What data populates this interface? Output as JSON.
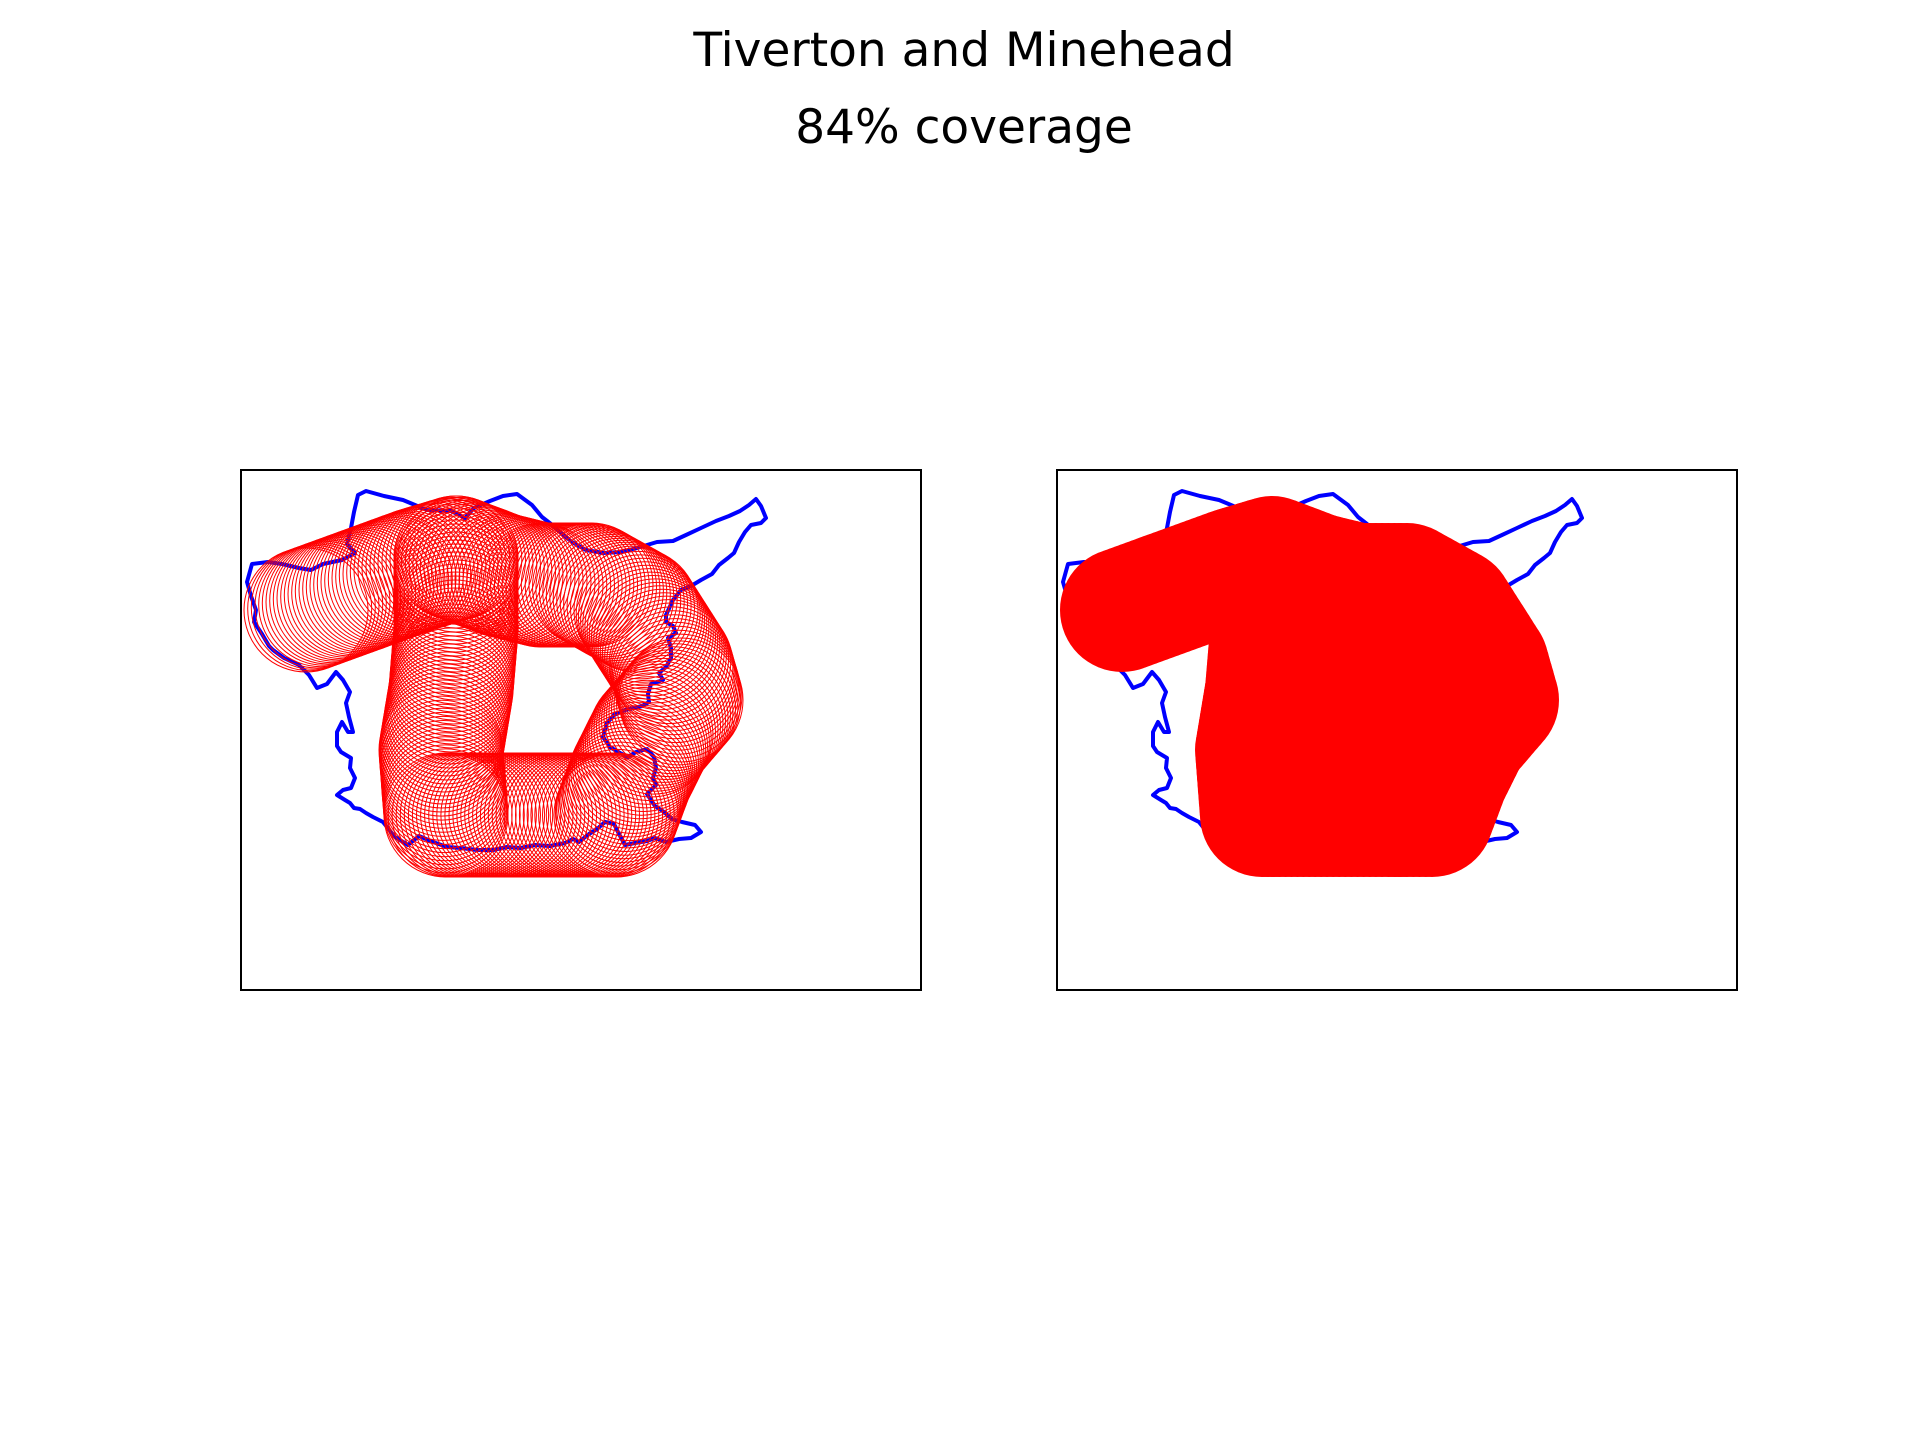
{
  "title": "Tiverton and Minehead",
  "subtitle": "84% coverage",
  "colors": {
    "boundary": "#0000ff",
    "coverage": "#ff0000",
    "frame": "#000000",
    "background": "#ffffff"
  },
  "panels": [
    {
      "name": "circle-outlines-panel",
      "style": "outlined-circles"
    },
    {
      "name": "filled-coverage-panel",
      "style": "filled-union"
    }
  ]
}
